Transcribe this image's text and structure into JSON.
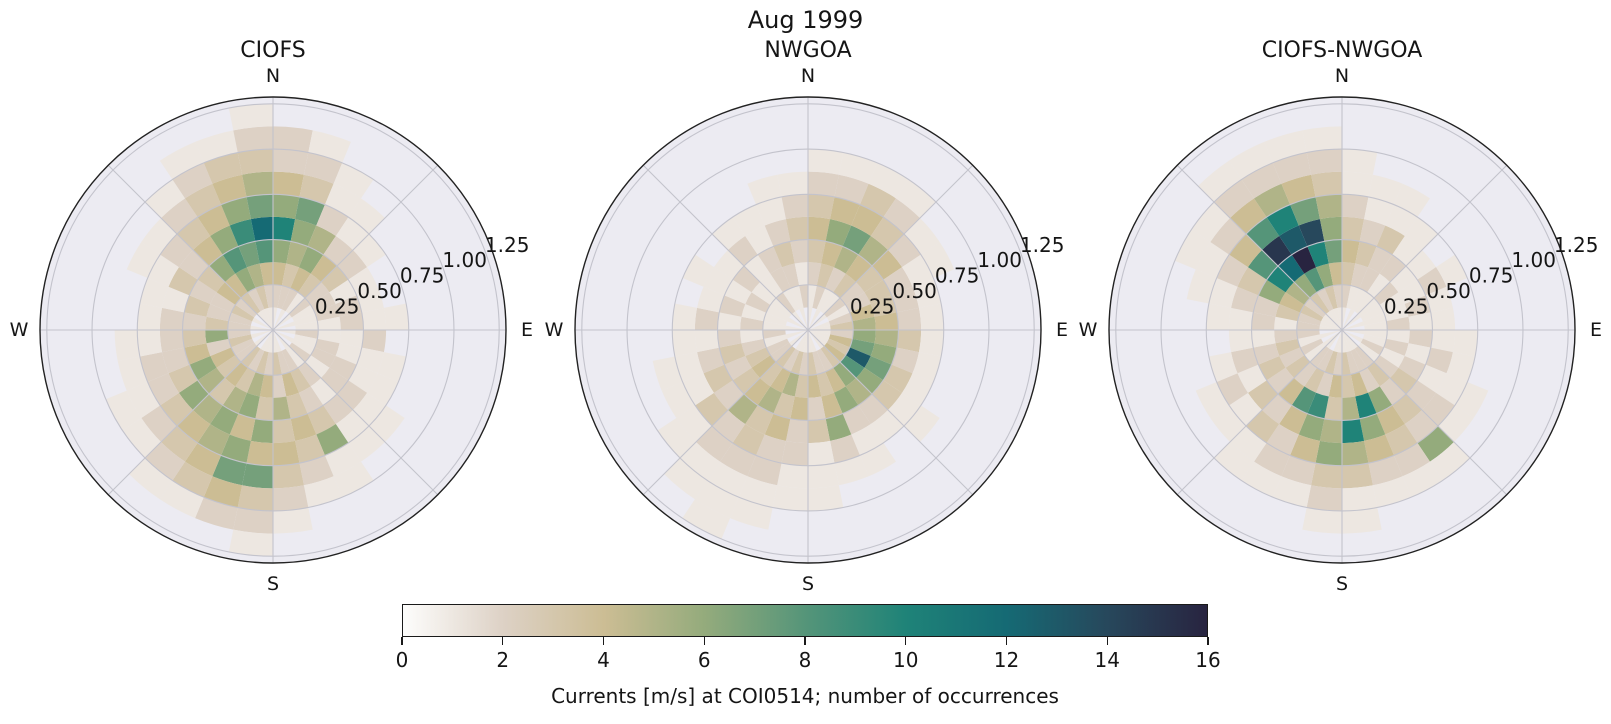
{
  "figure": {
    "title": "Aug 1999"
  },
  "style": {
    "axes_background": "#ecebf2",
    "grid_color": "#c3c3cc",
    "spine_color": "#222222",
    "text_color": "#151515"
  },
  "chart_data": [
    {
      "type": "heatmap",
      "projection": "polar",
      "title": "CIOFS",
      "direction_labels": {
        "n": "N",
        "e": "E",
        "s": "S",
        "w": "W"
      },
      "radial_ticks": [
        "0.25",
        "0.50",
        "0.75",
        "1.00",
        "1.25"
      ],
      "radial_tick_values": [
        0.25,
        0.5,
        0.75,
        1.0,
        1.25
      ],
      "r_max": 1.2875,
      "angle_bins": 32,
      "r_bin_width": 0.125,
      "values": [
        [
          1,
          2,
          4,
          6,
          10,
          6,
          4,
          2,
          2,
          0
        ],
        [
          0,
          2,
          3,
          5,
          6,
          7,
          3,
          2,
          1,
          0
        ],
        [
          1,
          2,
          4,
          6,
          5,
          2,
          1,
          1,
          0,
          0
        ],
        [
          0,
          1,
          3,
          4,
          2,
          1,
          1,
          0,
          0,
          0
        ],
        [
          1,
          2,
          2,
          3,
          2,
          1,
          0,
          0,
          0,
          0
        ],
        [
          0,
          1,
          2,
          1,
          1,
          0,
          0,
          0,
          0,
          0
        ],
        [
          1,
          1,
          2,
          2,
          1,
          0,
          0,
          0,
          0,
          0
        ],
        [
          0,
          1,
          1,
          2,
          1,
          1,
          0,
          0,
          0,
          0
        ],
        [
          1,
          2,
          1,
          1,
          2,
          0,
          0,
          0,
          0,
          0
        ],
        [
          0,
          1,
          2,
          1,
          1,
          1,
          0,
          0,
          0,
          0
        ],
        [
          1,
          1,
          2,
          2,
          1,
          1,
          0,
          0,
          0,
          0
        ],
        [
          0,
          2,
          1,
          2,
          2,
          1,
          1,
          0,
          0,
          0
        ],
        [
          1,
          1,
          2,
          1,
          2,
          1,
          1,
          0,
          0,
          0
        ],
        [
          0,
          2,
          3,
          2,
          3,
          6,
          1,
          1,
          0,
          0
        ],
        [
          1,
          2,
          4,
          3,
          4,
          3,
          2,
          1,
          0,
          0
        ],
        [
          1,
          3,
          2,
          5,
          3,
          4,
          3,
          2,
          1,
          0
        ],
        [
          1,
          2,
          4,
          3,
          6,
          4,
          7,
          3,
          2,
          1
        ],
        [
          1,
          3,
          5,
          6,
          4,
          6,
          7,
          4,
          2,
          0
        ],
        [
          1,
          2,
          3,
          5,
          6,
          5,
          4,
          3,
          1,
          0
        ],
        [
          0,
          3,
          4,
          3,
          5,
          4,
          3,
          2,
          1,
          0
        ],
        [
          1,
          2,
          3,
          5,
          6,
          3,
          2,
          1,
          0,
          0
        ],
        [
          0,
          2,
          4,
          6,
          3,
          2,
          1,
          1,
          0,
          0
        ],
        [
          1,
          3,
          2,
          4,
          2,
          2,
          1,
          0,
          0,
          0
        ],
        [
          0,
          2,
          6,
          3,
          2,
          1,
          1,
          0,
          0,
          0
        ],
        [
          1,
          2,
          3,
          2,
          2,
          1,
          0,
          0,
          0,
          0
        ],
        [
          0,
          2,
          2,
          3,
          1,
          1,
          0,
          0,
          0,
          0
        ],
        [
          1,
          3,
          2,
          2,
          3,
          1,
          1,
          0,
          0,
          0
        ],
        [
          0,
          2,
          4,
          3,
          2,
          2,
          1,
          0,
          0,
          0
        ],
        [
          1,
          3,
          4,
          6,
          4,
          3,
          2,
          1,
          0,
          0
        ],
        [
          1,
          2,
          6,
          8,
          6,
          4,
          3,
          2,
          1,
          0
        ],
        [
          1,
          3,
          5,
          7,
          9,
          6,
          4,
          3,
          1,
          0
        ],
        [
          1,
          2,
          4,
          8,
          12,
          7,
          5,
          3,
          2,
          1
        ]
      ]
    },
    {
      "type": "heatmap",
      "projection": "polar",
      "title": "NWGOA",
      "direction_labels": {
        "n": "N",
        "e": "E",
        "s": "S",
        "w": "W"
      },
      "radial_ticks": [
        "0.25",
        "0.50",
        "0.75",
        "1.00",
        "1.25"
      ],
      "radial_tick_values": [
        0.25,
        0.5,
        0.75,
        1.0,
        1.25
      ],
      "r_max": 1.2875,
      "angle_bins": 32,
      "r_bin_width": 0.125,
      "values": [
        [
          1,
          1,
          2,
          3,
          4,
          3,
          2,
          1,
          0,
          0
        ],
        [
          0,
          2,
          3,
          4,
          6,
          4,
          2,
          1,
          0,
          0
        ],
        [
          1,
          1,
          2,
          5,
          7,
          4,
          3,
          1,
          0,
          0
        ],
        [
          0,
          1,
          3,
          4,
          5,
          3,
          2,
          1,
          0,
          0
        ],
        [
          1,
          2,
          2,
          3,
          4,
          2,
          1,
          0,
          0,
          0
        ],
        [
          0,
          1,
          2,
          3,
          2,
          1,
          1,
          0,
          0,
          0
        ],
        [
          1,
          2,
          4,
          3,
          2,
          1,
          0,
          0,
          0,
          0
        ],
        [
          1,
          3,
          5,
          4,
          2,
          1,
          0,
          0,
          0,
          0
        ],
        [
          1,
          2,
          6,
          5,
          3,
          1,
          0,
          0,
          0,
          0
        ],
        [
          1,
          4,
          7,
          6,
          2,
          1,
          0,
          0,
          0,
          0
        ],
        [
          1,
          3,
          13,
          7,
          3,
          1,
          0,
          0,
          0,
          0
        ],
        [
          1,
          4,
          8,
          6,
          3,
          1,
          1,
          0,
          0,
          0
        ],
        [
          1,
          3,
          6,
          5,
          2,
          1,
          0,
          0,
          0,
          0
        ],
        [
          0,
          2,
          4,
          6,
          2,
          1,
          1,
          0,
          0,
          0
        ],
        [
          1,
          2,
          3,
          4,
          6,
          2,
          1,
          0,
          0,
          0
        ],
        [
          1,
          3,
          4,
          2,
          3,
          1,
          1,
          1,
          0,
          0
        ],
        [
          1,
          2,
          3,
          4,
          2,
          2,
          1,
          1,
          0,
          0
        ],
        [
          1,
          3,
          5,
          3,
          4,
          2,
          2,
          1,
          1,
          0
        ],
        [
          1,
          2,
          4,
          5,
          3,
          3,
          2,
          1,
          1,
          1
        ],
        [
          0,
          3,
          3,
          4,
          5,
          2,
          2,
          1,
          1,
          0
        ],
        [
          1,
          2,
          4,
          3,
          2,
          3,
          1,
          1,
          0,
          0
        ],
        [
          0,
          2,
          3,
          2,
          3,
          1,
          1,
          0,
          0,
          0
        ],
        [
          1,
          1,
          2,
          3,
          2,
          1,
          1,
          0,
          0,
          0
        ],
        [
          0,
          2,
          1,
          2,
          1,
          1,
          0,
          0,
          0,
          0
        ],
        [
          1,
          1,
          2,
          1,
          2,
          1,
          0,
          0,
          0,
          0
        ],
        [
          0,
          1,
          1,
          2,
          1,
          0,
          0,
          0,
          0,
          0
        ],
        [
          1,
          1,
          2,
          1,
          1,
          1,
          0,
          0,
          0,
          0
        ],
        [
          0,
          1,
          1,
          2,
          1,
          0,
          0,
          0,
          0,
          0
        ],
        [
          1,
          2,
          1,
          1,
          2,
          1,
          0,
          0,
          0,
          0
        ],
        [
          0,
          1,
          2,
          2,
          1,
          1,
          0,
          0,
          0,
          0
        ],
        [
          1,
          1,
          2,
          3,
          2,
          1,
          1,
          0,
          0,
          0
        ],
        [
          0,
          2,
          1,
          2,
          3,
          2,
          1,
          0,
          0,
          0
        ]
      ]
    },
    {
      "type": "heatmap",
      "projection": "polar",
      "title": "CIOFS-NWGOA",
      "direction_labels": {
        "n": "N",
        "e": "E",
        "s": "S",
        "w": "W"
      },
      "radial_ticks": [
        "0.25",
        "0.50",
        "0.75",
        "1.00",
        "1.25"
      ],
      "radial_tick_values": [
        0.25,
        0.5,
        0.75,
        1.0,
        1.25
      ],
      "r_max": 1.2875,
      "angle_bins": 32,
      "r_bin_width": 0.125,
      "values": [
        [
          1,
          2,
          3,
          4,
          3,
          2,
          1,
          1,
          0,
          0
        ],
        [
          0,
          1,
          2,
          3,
          2,
          1,
          1,
          0,
          0,
          0
        ],
        [
          1,
          1,
          2,
          2,
          3,
          1,
          1,
          0,
          0,
          0
        ],
        [
          0,
          1,
          1,
          2,
          1,
          1,
          0,
          0,
          0,
          0
        ],
        [
          1,
          1,
          2,
          1,
          1,
          0,
          0,
          0,
          0,
          0
        ],
        [
          0,
          1,
          1,
          1,
          2,
          1,
          0,
          0,
          0,
          0
        ],
        [
          1,
          1,
          1,
          2,
          1,
          0,
          0,
          0,
          0,
          0
        ],
        [
          0,
          1,
          2,
          1,
          1,
          0,
          0,
          0,
          0,
          0
        ],
        [
          1,
          1,
          1,
          2,
          1,
          1,
          0,
          0,
          0,
          0
        ],
        [
          0,
          1,
          2,
          1,
          2,
          1,
          0,
          0,
          0,
          0
        ],
        [
          1,
          2,
          1,
          2,
          1,
          1,
          1,
          0,
          0,
          0
        ],
        [
          0,
          1,
          2,
          3,
          2,
          2,
          1,
          0,
          0,
          0
        ],
        [
          1,
          2,
          3,
          2,
          3,
          2,
          6,
          1,
          0,
          0
        ],
        [
          1,
          2,
          2,
          6,
          4,
          3,
          2,
          1,
          0,
          0
        ],
        [
          1,
          2,
          4,
          10,
          6,
          4,
          2,
          1,
          0,
          0
        ],
        [
          1,
          3,
          3,
          5,
          10,
          5,
          3,
          1,
          1,
          0
        ],
        [
          1,
          2,
          4,
          3,
          5,
          6,
          3,
          2,
          1,
          0
        ],
        [
          1,
          3,
          2,
          9,
          6,
          4,
          2,
          1,
          0,
          0
        ],
        [
          0,
          2,
          3,
          8,
          4,
          2,
          2,
          1,
          0,
          0
        ],
        [
          1,
          2,
          2,
          4,
          2,
          3,
          1,
          1,
          0,
          0
        ],
        [
          1,
          1,
          3,
          2,
          3,
          1,
          1,
          0,
          0,
          0
        ],
        [
          0,
          2,
          2,
          3,
          1,
          2,
          1,
          0,
          0,
          0
        ],
        [
          1,
          1,
          3,
          2,
          2,
          1,
          0,
          0,
          0,
          0
        ],
        [
          0,
          2,
          2,
          1,
          1,
          0,
          0,
          0,
          0,
          0
        ],
        [
          1,
          2,
          1,
          2,
          1,
          1,
          0,
          0,
          0,
          0
        ],
        [
          1,
          2,
          3,
          2,
          2,
          1,
          1,
          0,
          0,
          0
        ],
        [
          1,
          3,
          4,
          6,
          3,
          2,
          1,
          1,
          0,
          0
        ],
        [
          1,
          2,
          5,
          10,
          8,
          4,
          2,
          1,
          0,
          0
        ],
        [
          1,
          3,
          6,
          12,
          15,
          8,
          4,
          2,
          1,
          0
        ],
        [
          1,
          2,
          8,
          16,
          13,
          10,
          5,
          2,
          1,
          0
        ],
        [
          1,
          3,
          6,
          10,
          14,
          7,
          4,
          2,
          1,
          0
        ],
        [
          1,
          2,
          4,
          7,
          6,
          5,
          3,
          2,
          1,
          0
        ]
      ]
    }
  ],
  "colorbar": {
    "min": 0,
    "max": 16,
    "ticks": [
      0,
      2,
      4,
      6,
      8,
      10,
      12,
      14,
      16
    ],
    "label": "Currents [m/s] at COI0514; number of occurrences",
    "stops": [
      {
        "v": 0,
        "c": "#fdfdfc"
      },
      {
        "v": 2,
        "c": "#ddd1c5"
      },
      {
        "v": 4,
        "c": "#ccbd94"
      },
      {
        "v": 6,
        "c": "#94ab7c"
      },
      {
        "v": 8,
        "c": "#559579"
      },
      {
        "v": 10,
        "c": "#1f8378"
      },
      {
        "v": 12,
        "c": "#156a74"
      },
      {
        "v": 14,
        "c": "#27485c"
      },
      {
        "v": 16,
        "c": "#282440"
      }
    ]
  }
}
